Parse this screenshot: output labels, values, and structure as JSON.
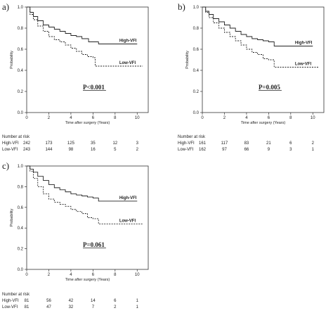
{
  "chart_data": [
    {
      "type": "line",
      "panel": "a)",
      "xlabel": "Time after surgery (Years)",
      "ylabel": "Probability",
      "xlim": [
        0,
        11
      ],
      "ylim": [
        0,
        1
      ],
      "xticks": [
        "0",
        "2",
        "4",
        "6",
        "8",
        "10"
      ],
      "yticks": [
        "0.0",
        "0.2",
        "0.4",
        "0.6",
        "0.8",
        "1.0"
      ],
      "annotation": "P<0.001",
      "series": [
        {
          "name": "High-VFI",
          "style": "solid",
          "x": [
            0,
            0.3,
            0.6,
            1.0,
            1.5,
            2.0,
            2.5,
            3.0,
            3.5,
            4.0,
            4.5,
            5.0,
            5.6,
            6.5,
            8.0,
            10.0
          ],
          "y": [
            1.0,
            0.95,
            0.91,
            0.87,
            0.83,
            0.81,
            0.79,
            0.77,
            0.75,
            0.73,
            0.72,
            0.7,
            0.67,
            0.65,
            0.65,
            0.65
          ]
        },
        {
          "name": "Low-VFI",
          "style": "dashed",
          "x": [
            0,
            0.3,
            0.6,
            1.0,
            1.5,
            2.0,
            2.5,
            3.0,
            3.5,
            4.0,
            4.5,
            5.0,
            5.5,
            6.0,
            6.2,
            8.0,
            10.5
          ],
          "y": [
            1.0,
            0.93,
            0.88,
            0.82,
            0.77,
            0.72,
            0.69,
            0.67,
            0.64,
            0.61,
            0.58,
            0.55,
            0.53,
            0.52,
            0.44,
            0.44,
            0.44
          ]
        }
      ],
      "risk_table": {
        "title": "Number at risk",
        "rows": [
          {
            "label": "High-VFI",
            "counts": [
              "242",
              "173",
              "125",
              "35",
              "12",
              "3"
            ]
          },
          {
            "label": "Low-VFI",
            "counts": [
              "243",
              "144",
              "98",
              "16",
              "5",
              "2"
            ]
          }
        ]
      }
    },
    {
      "type": "line",
      "panel": "b)",
      "xlabel": "Time after surgery (Years)",
      "ylabel": "Probability",
      "xlim": [
        0,
        11
      ],
      "ylim": [
        0,
        1
      ],
      "xticks": [
        "0",
        "2",
        "4",
        "6",
        "8",
        "10"
      ],
      "yticks": [
        "0.0",
        "0.2",
        "0.4",
        "0.6",
        "0.8",
        "1.0"
      ],
      "annotation": "P=0.005",
      "series": [
        {
          "name": "High-VFI",
          "style": "solid",
          "x": [
            0,
            0.3,
            0.6,
            1.0,
            1.5,
            2.0,
            2.5,
            3.0,
            3.5,
            4.0,
            4.5,
            5.0,
            5.5,
            6.0,
            6.5,
            8.0,
            10.0
          ],
          "y": [
            1.0,
            0.96,
            0.93,
            0.89,
            0.86,
            0.83,
            0.8,
            0.77,
            0.74,
            0.72,
            0.7,
            0.69,
            0.68,
            0.67,
            0.63,
            0.63,
            0.63
          ]
        },
        {
          "name": "Low-VFI",
          "style": "dashed",
          "x": [
            0,
            0.3,
            0.6,
            1.0,
            1.5,
            2.0,
            2.5,
            3.0,
            3.5,
            4.0,
            4.5,
            5.0,
            5.5,
            6.0,
            6.5,
            8.0,
            10.5
          ],
          "y": [
            1.0,
            0.95,
            0.9,
            0.85,
            0.8,
            0.76,
            0.72,
            0.68,
            0.64,
            0.6,
            0.57,
            0.55,
            0.51,
            0.5,
            0.43,
            0.43,
            0.43
          ]
        }
      ],
      "risk_table": {
        "title": "Number at risk",
        "rows": [
          {
            "label": "High-VFI",
            "counts": [
              "161",
              "117",
              "83",
              "21",
              "6",
              "2"
            ]
          },
          {
            "label": "Low-VFI",
            "counts": [
              "162",
              "97",
              "66",
              "9",
              "3",
              "1"
            ]
          }
        ]
      }
    },
    {
      "type": "line",
      "panel": "c)",
      "xlabel": "Time after surgery (Years)",
      "ylabel": "Probability",
      "xlim": [
        0,
        11
      ],
      "ylim": [
        0,
        1
      ],
      "xticks": [
        "0",
        "2",
        "4",
        "6",
        "8",
        "10"
      ],
      "yticks": [
        "0.0",
        "0.2",
        "0.4",
        "0.6",
        "0.8",
        "1.0"
      ],
      "annotation": "P=0.061",
      "series": [
        {
          "name": "High-VFI",
          "style": "solid",
          "x": [
            0,
            0.3,
            0.6,
            1.0,
            1.5,
            2.0,
            2.5,
            3.0,
            3.5,
            4.0,
            4.5,
            5.0,
            5.5,
            6.0,
            6.5,
            8.0,
            10.0
          ],
          "y": [
            1.0,
            0.97,
            0.94,
            0.9,
            0.86,
            0.82,
            0.79,
            0.77,
            0.75,
            0.73,
            0.72,
            0.71,
            0.7,
            0.69,
            0.66,
            0.66,
            0.66
          ]
        },
        {
          "name": "Low-VFI",
          "style": "dashed",
          "x": [
            0,
            0.3,
            0.6,
            1.0,
            1.5,
            2.0,
            2.5,
            3.0,
            3.5,
            4.0,
            4.5,
            5.0,
            5.5,
            6.0,
            6.5,
            8.0,
            10.5
          ],
          "y": [
            1.0,
            0.95,
            0.88,
            0.8,
            0.73,
            0.68,
            0.65,
            0.63,
            0.61,
            0.58,
            0.56,
            0.54,
            0.5,
            0.49,
            0.44,
            0.44,
            0.44
          ]
        }
      ],
      "risk_table": {
        "title": "Number at risk",
        "rows": [
          {
            "label": "High-VFI",
            "counts": [
              "81",
              "56",
              "42",
              "14",
              "6",
              "1"
            ]
          },
          {
            "label": "Low-VFI",
            "counts": [
              "81",
              "47",
              "32",
              "7",
              "2",
              "1"
            ]
          }
        ]
      }
    }
  ]
}
